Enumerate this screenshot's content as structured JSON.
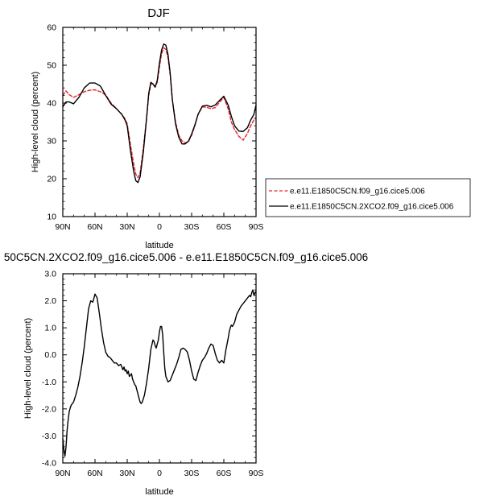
{
  "chart_data": [
    {
      "type": "line",
      "title": "DJF",
      "xlabel": "latitude",
      "ylabel": "High-level cloud (percent)",
      "xlim": [
        90,
        -90
      ],
      "ylim": [
        10,
        60
      ],
      "x_ticks": [
        90,
        60,
        30,
        0,
        -30,
        -60,
        -90
      ],
      "x_tick_labels": [
        "90N",
        "60N",
        "30N",
        "0",
        "30S",
        "60S",
        "90S"
      ],
      "y_ticks": [
        10,
        20,
        30,
        40,
        50,
        60
      ],
      "y_tick_labels": [
        "10",
        "20",
        "30",
        "40",
        "50",
        "60"
      ],
      "legend": {
        "placement": "outside-right"
      },
      "series": [
        {
          "name": "e.e11.E1850C5CN.f09_g16.cice5.006",
          "color": "#e8212b",
          "style": "dashed",
          "x": [
            90,
            87,
            84,
            80,
            75,
            70,
            65,
            60,
            55,
            50,
            45,
            40,
            35,
            32,
            30,
            27,
            24,
            22,
            20,
            18,
            15,
            12,
            10,
            8,
            6,
            4,
            2,
            0,
            -2,
            -4,
            -6,
            -8,
            -10,
            -12,
            -15,
            -18,
            -21,
            -24,
            -27,
            -30,
            -33,
            -36,
            -40,
            -44,
            -48,
            -52,
            -56,
            -60,
            -64,
            -67,
            -70,
            -74,
            -78,
            -82,
            -85,
            -88,
            -90
          ],
          "y": [
            42,
            43.2,
            42.2,
            41.5,
            42.2,
            43,
            43.4,
            43.5,
            43,
            42.1,
            40,
            38.5,
            37,
            35.8,
            34.5,
            29,
            24,
            21.2,
            20.3,
            21.5,
            28,
            36,
            42,
            45,
            45.2,
            44.3,
            45.5,
            49.5,
            53,
            54.6,
            54.2,
            52,
            47.5,
            41,
            35,
            31.5,
            30,
            29.5,
            29.8,
            31.5,
            34,
            37,
            39,
            38.9,
            38.5,
            38.8,
            40.2,
            41.5,
            38.5,
            35,
            33,
            31.2,
            30.2,
            32,
            34,
            35.5,
            36
          ]
        },
        {
          "name": "e.e11.E1850C5CN.2XCO2.f09_g16.cice5.006",
          "color": "#000000",
          "style": "solid",
          "x": [
            90,
            87,
            84,
            80,
            75,
            70,
            65,
            60,
            55,
            50,
            45,
            40,
            35,
            32,
            30,
            27,
            24,
            22,
            20,
            18,
            15,
            12,
            10,
            8,
            6,
            4,
            2,
            0,
            -2,
            -4,
            -6,
            -8,
            -10,
            -12,
            -15,
            -18,
            -21,
            -24,
            -27,
            -30,
            -33,
            -36,
            -40,
            -44,
            -48,
            -52,
            -56,
            -60,
            -64,
            -67,
            -70,
            -74,
            -78,
            -82,
            -85,
            -88,
            -90
          ],
          "y": [
            39,
            40.3,
            40.3,
            39.8,
            41.5,
            44,
            45.3,
            45.3,
            44.5,
            42,
            39.7,
            38.5,
            37,
            35.5,
            34,
            27.5,
            22,
            19.5,
            19,
            20.5,
            27,
            35.8,
            42.5,
            45.5,
            45,
            44.2,
            46,
            50.5,
            54,
            55.6,
            55.3,
            52.8,
            48,
            41,
            34.5,
            31,
            29.2,
            29.2,
            29.9,
            31.8,
            34.2,
            37,
            39.2,
            39.4,
            39,
            39.5,
            40.7,
            41.8,
            39.5,
            36.5,
            34,
            32.6,
            32.5,
            33.5,
            35.5,
            37,
            39.5
          ]
        }
      ]
    },
    {
      "type": "line",
      "title": "50C5CN.2XCO2.f09_g16.cice5.006 - e.e11.E1850C5CN.f09_g16.cice5.006",
      "xlabel": "latitude",
      "ylabel": "High-level cloud (percent)",
      "xlim": [
        90,
        -90
      ],
      "ylim": [
        -4,
        3
      ],
      "x_ticks": [
        90,
        60,
        30,
        0,
        -30,
        -60,
        -90
      ],
      "x_tick_labels": [
        "90N",
        "60N",
        "30N",
        "0",
        "30S",
        "60S",
        "90S"
      ],
      "y_ticks": [
        -4,
        -3,
        -2,
        -1,
        0,
        1,
        2,
        3
      ],
      "y_tick_labels": [
        "-4.0",
        "-3.0",
        "-2.0",
        "-1.0",
        "0.0",
        "1.0",
        "2.0",
        "3.0"
      ],
      "series": [
        {
          "color": "#000000",
          "style": "solid",
          "x": [
            90,
            89,
            88,
            87,
            86,
            85,
            84,
            83,
            82,
            80,
            78,
            76,
            74,
            72,
            70,
            68,
            66,
            64,
            62,
            60,
            58,
            56,
            54,
            52,
            50,
            48,
            46,
            44,
            42,
            40,
            38,
            36,
            34,
            33,
            32,
            31,
            30,
            29,
            28,
            27,
            26,
            25,
            24,
            23,
            22,
            21,
            20,
            19,
            18,
            17,
            16,
            14,
            12,
            10,
            8,
            6,
            5,
            4,
            3,
            2,
            1,
            0,
            -1,
            -2,
            -3,
            -4,
            -5,
            -6,
            -8,
            -10,
            -12,
            -14,
            -16,
            -18,
            -20,
            -22,
            -24,
            -26,
            -28,
            -30,
            -32,
            -34,
            -36,
            -38,
            -40,
            -42,
            -44,
            -46,
            -48,
            -50,
            -52,
            -54,
            -56,
            -58,
            -60,
            -62,
            -64,
            -65,
            -66,
            -67,
            -68,
            -70,
            -72,
            -74,
            -76,
            -78,
            -80,
            -82,
            -84,
            -85,
            -86,
            -87,
            -88,
            -89,
            -90
          ],
          "y": [
            -3.1,
            -3.5,
            -3.75,
            -3.4,
            -2.8,
            -2.4,
            -2.1,
            -1.95,
            -1.85,
            -1.75,
            -1.5,
            -1.2,
            -0.8,
            -0.3,
            0.3,
            1,
            1.7,
            2,
            1.95,
            2.25,
            2.1,
            1.55,
            0.95,
            0.45,
            0.1,
            -0.05,
            -0.1,
            -0.2,
            -0.3,
            -0.3,
            -0.4,
            -0.35,
            -0.55,
            -0.45,
            -0.6,
            -0.55,
            -0.7,
            -0.6,
            -0.8,
            -0.75,
            -0.7,
            -0.9,
            -1,
            -1.1,
            -1.15,
            -1.3,
            -1.45,
            -1.6,
            -1.75,
            -1.8,
            -1.75,
            -1.5,
            -1.05,
            -0.5,
            0.2,
            0.55,
            0.5,
            0.35,
            0.25,
            0.4,
            0.55,
            0.85,
            1.05,
            1.05,
            0.75,
            0.1,
            -0.5,
            -0.8,
            -1,
            -0.95,
            -0.75,
            -0.55,
            -0.35,
            -0.1,
            0.2,
            0.25,
            0.2,
            0.1,
            -0.2,
            -0.6,
            -0.9,
            -0.95,
            -0.65,
            -0.4,
            -0.2,
            -0.1,
            0.05,
            0.25,
            0.4,
            0.35,
            0.05,
            -0.2,
            -0.3,
            -0.2,
            -0.3,
            0.2,
            0.6,
            0.85,
            1,
            1.1,
            1.05,
            1.2,
            1.5,
            1.65,
            1.8,
            1.9,
            2,
            2.1,
            2.2,
            2.15,
            2.3,
            2.4,
            2.2,
            2.3,
            2.35
          ]
        }
      ]
    }
  ],
  "colors": {
    "axis": "#000000",
    "background": "#ffffff"
  }
}
